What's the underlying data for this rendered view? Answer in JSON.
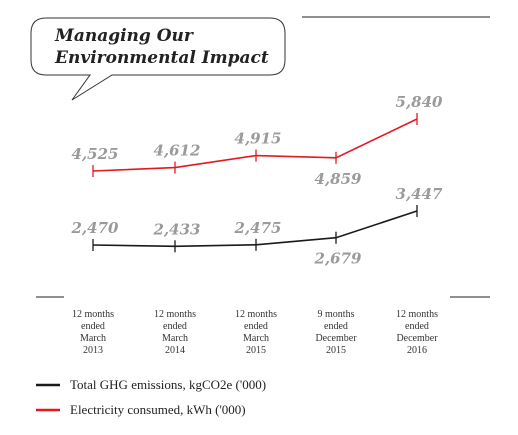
{
  "title_lines": [
    "Managing Our",
    "Environmental Impact"
  ],
  "chart_data": {
    "type": "line",
    "title": "Managing Our Environmental Impact",
    "categories": [
      [
        "12 months",
        "ended",
        "March",
        "2013"
      ],
      [
        "12 months",
        "ended",
        "March",
        "2014"
      ],
      [
        "12 months",
        "ended",
        "March",
        "2015"
      ],
      [
        "9 months",
        "ended",
        "December",
        "2015"
      ],
      [
        "12 months",
        "ended",
        "December",
        "2016"
      ]
    ],
    "series": [
      {
        "name": "Electricity consumed, kWh  ('000)",
        "color": "#e3191f",
        "values": [
          4525,
          4612,
          4915,
          4859,
          5840
        ],
        "labels": [
          "4,525",
          "4,612",
          "4,915",
          "4,859",
          "5,840"
        ],
        "label_position": [
          "above",
          "above",
          "above",
          "below",
          "above"
        ]
      },
      {
        "name": "Total GHG emissions, kgCO2e  ('000)",
        "color": "#1a1a1a",
        "values": [
          2470,
          2433,
          2475,
          2679,
          3447
        ],
        "labels": [
          "2,470",
          "2,433",
          "2,475",
          "2,679",
          "3,447"
        ],
        "label_position": [
          "above",
          "above",
          "above",
          "below",
          "above"
        ]
      }
    ],
    "legend": [
      {
        "label": "Total GHG emissions, kgCO2e  ('000)",
        "color": "#1a1a1a"
      },
      {
        "label": "Electricity consumed, kWh  ('000)",
        "color": "#e3191f"
      }
    ],
    "legend_position": "bottom-left",
    "grid": false
  }
}
